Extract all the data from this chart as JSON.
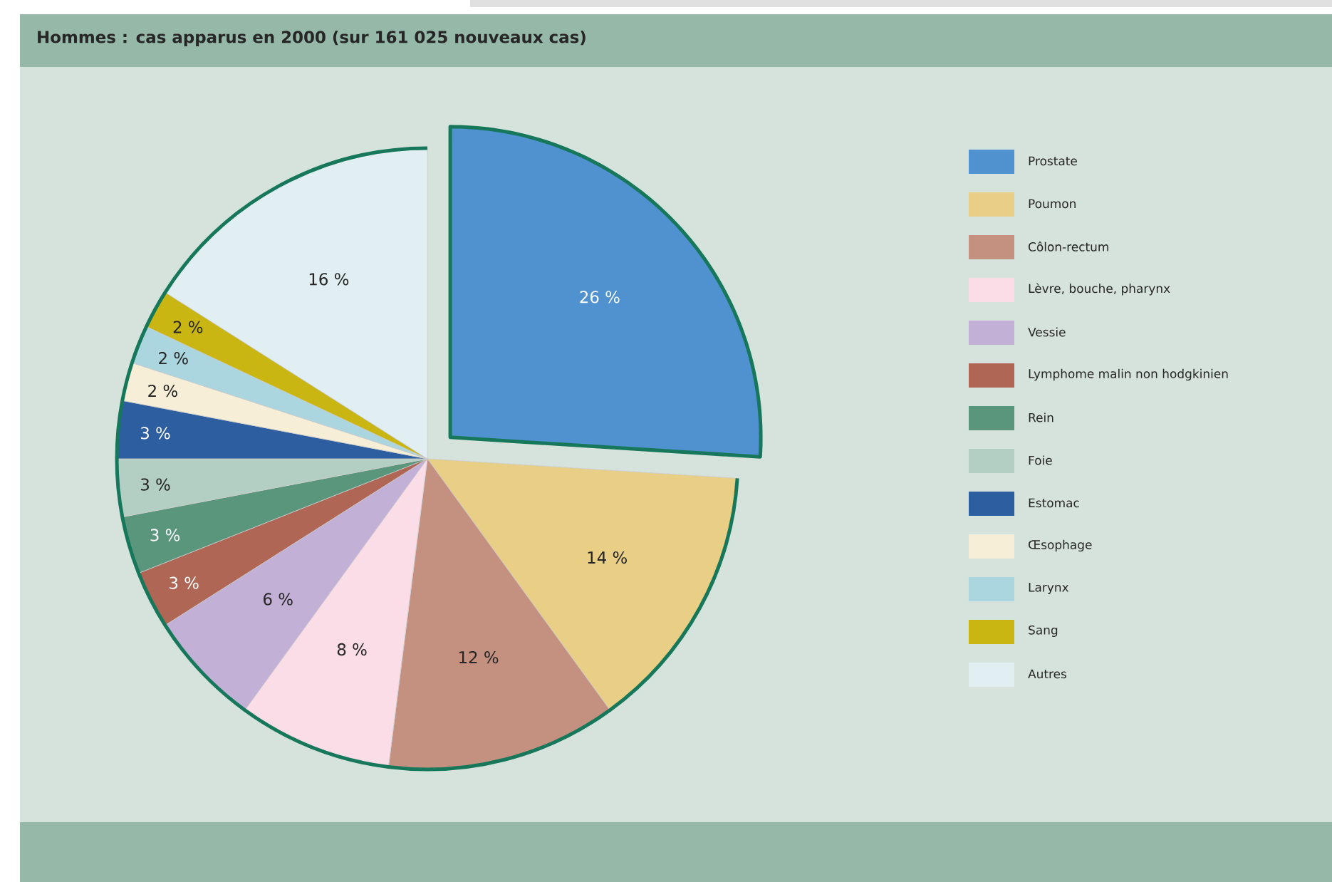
{
  "chart_data": {
    "type": "pie",
    "title": "Hommes : cas apparus en 2000 (sur 161 025 nouveaux cas)",
    "categories": [
      "Prostate",
      "Poumon",
      "Côlon-rectum",
      "Lèvre, bouche, pharynx",
      "Vessie",
      "Lymphome malin non hodgkinien",
      "Rein",
      "Foie",
      "Estomac",
      "Œsophage",
      "Larynx",
      "Sang",
      "Autres"
    ],
    "values": [
      26,
      14,
      12,
      8,
      6,
      3,
      3,
      3,
      3,
      2,
      2,
      2,
      16
    ],
    "value_labels": [
      "26 %",
      "14 %",
      "12 %",
      "8 %",
      "6 %",
      "3 %",
      "3 %",
      "3 %",
      "3 %",
      "2 %",
      "2 %",
      "2 %",
      "16 %"
    ],
    "colors": [
      "#4f92cf",
      "#e8cf85",
      "#c49080",
      "#fbdde8",
      "#c2b0d6",
      "#b06654",
      "#5a967c",
      "#b3cfc3",
      "#2d5fa0",
      "#f6eed6",
      "#abd6e0",
      "#c9b612",
      "#e2eff2"
    ],
    "legend": "right"
  }
}
